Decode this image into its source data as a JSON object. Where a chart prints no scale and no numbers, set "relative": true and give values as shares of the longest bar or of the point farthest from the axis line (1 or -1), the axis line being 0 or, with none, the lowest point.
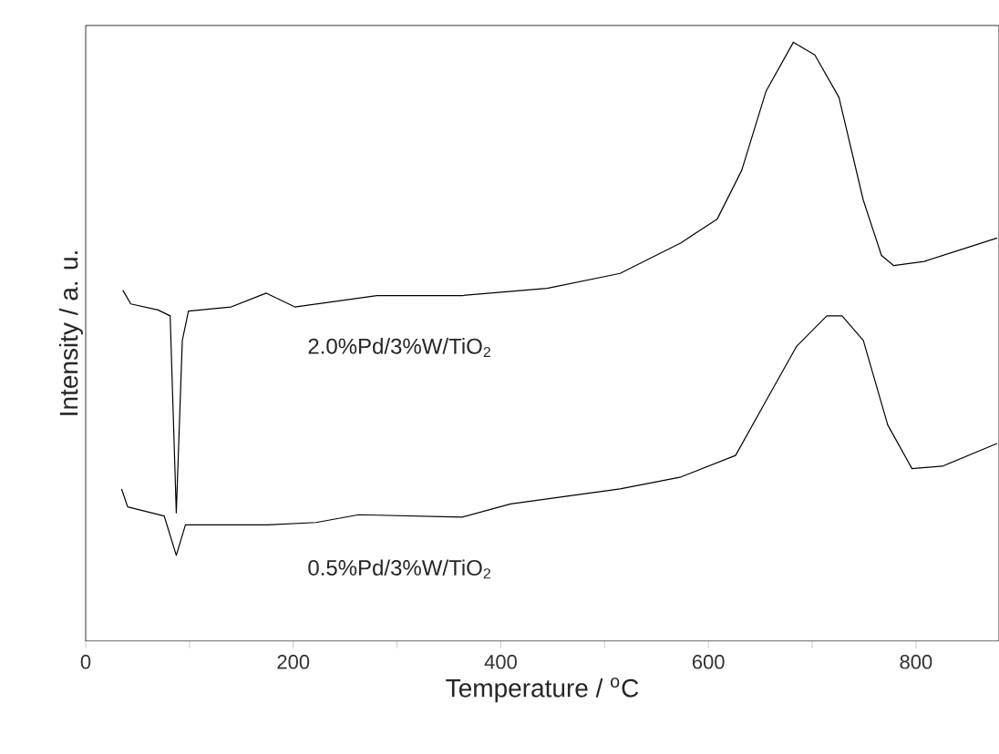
{
  "chart_data": {
    "type": "line",
    "relative": true,
    "xlabel": "Temperature / $^{o}$C",
    "ylabel": "Intensity / a. u.",
    "xlim": [
      0,
      880
    ],
    "xticks": [
      0,
      {
        "value": 100,
        "label": null
      },
      200,
      {
        "value": 300,
        "label": null
      },
      400,
      {
        "value": 500,
        "label": null
      },
      600,
      {
        "value": 700,
        "label": null
      },
      800
    ],
    "series": [
      {
        "name": "2.0%Pd/3%W/TiO$_{2}$",
        "color": "#000000",
        "x": [
          35.8,
          43.4,
          69.7,
          81.4,
          87.3,
          93.1,
          99.0,
          140,
          174,
          201.5,
          280.6,
          362.6,
          444.6,
          514.9,
          573.5,
          608.6,
          632.1,
          655.5,
          681.9,
          702.5,
          725.8,
          749.3,
          766.8,
          778.6,
          807.9,
          878.2
        ],
        "values": [
          0.586,
          0.563,
          0.553,
          0.543,
          0.214,
          0.502,
          0.551,
          0.558,
          0.581,
          0.558,
          0.577,
          0.577,
          0.589,
          0.614,
          0.665,
          0.705,
          0.786,
          0.918,
          1.0,
          0.979,
          0.908,
          0.736,
          0.644,
          0.627,
          0.634,
          0.673
        ]
      },
      {
        "name": "0.5%Pd/3%W/TiO$_{2}$",
        "color": "#000000",
        "x": [
          34.6,
          40.4,
          75.6,
          87.3,
          96.1,
          134.1,
          175.2,
          222,
          263.1,
          362.6,
          409.5,
          514.9,
          573.5,
          626.2,
          655.5,
          684.9,
          714.1,
          728.8,
          749.3,
          772.8,
          796.2,
          825.5,
          878.2
        ],
        "values": [
          0.254,
          0.224,
          0.209,
          0.143,
          0.194,
          0.194,
          0.194,
          0.198,
          0.211,
          0.207,
          0.229,
          0.254,
          0.274,
          0.31,
          0.401,
          0.492,
          0.543,
          0.543,
          0.502,
          0.361,
          0.288,
          0.292,
          0.33
        ]
      }
    ]
  }
}
